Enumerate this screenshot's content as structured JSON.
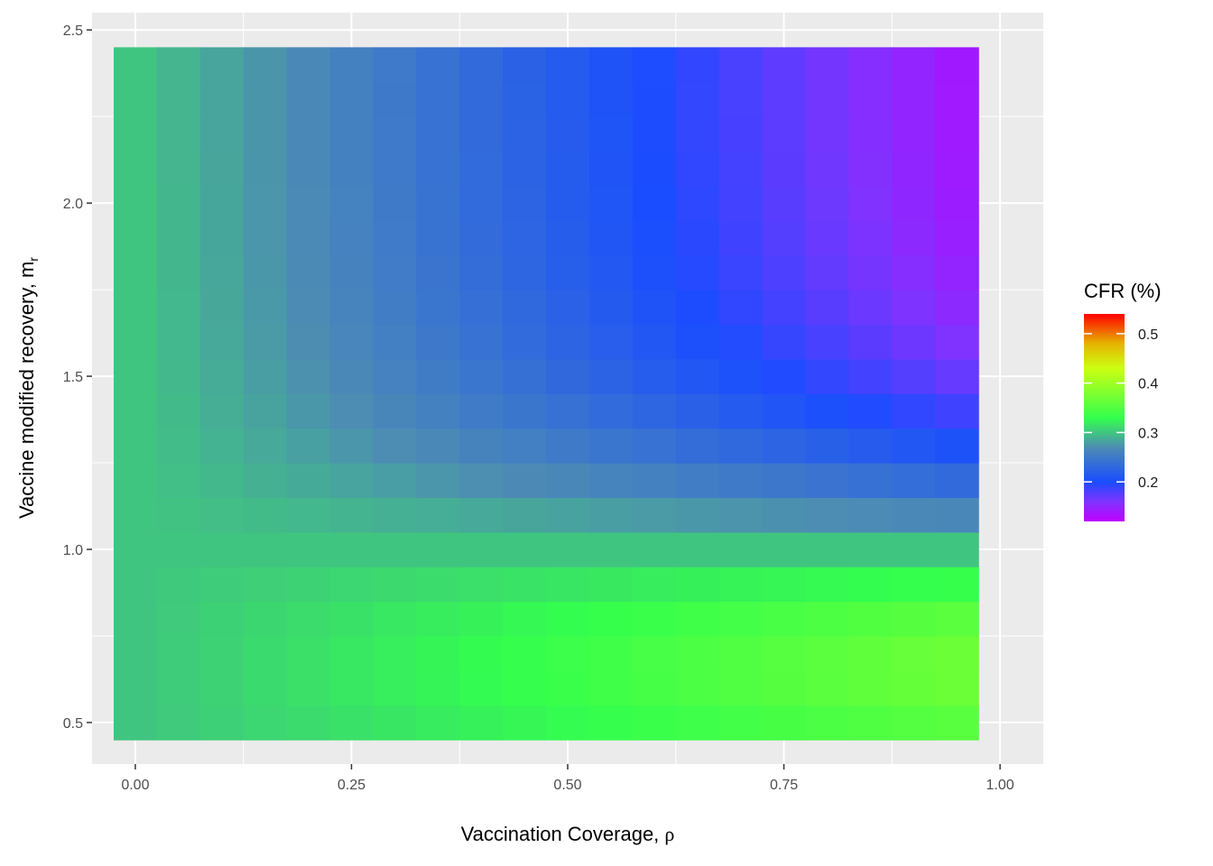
{
  "chart_data": {
    "type": "heatmap",
    "title": "",
    "xlabel_main": "Vaccination Coverage, ",
    "xlabel_symbol": "ρ",
    "ylabel_main": "Vaccine modified recovery, m",
    "ylabel_sub": "r",
    "x_ticks": [
      0.0,
      0.25,
      0.5,
      0.75,
      1.0
    ],
    "x_tick_labels": [
      "0.00",
      "0.25",
      "0.50",
      "0.75",
      "1.00"
    ],
    "y_ticks": [
      0.5,
      1.0,
      1.5,
      2.0,
      2.5
    ],
    "y_tick_labels": [
      "0.5",
      "1.0",
      "1.5",
      "2.0",
      "2.5"
    ],
    "xlim": [
      -0.05,
      1.05
    ],
    "ylim": [
      0.38,
      2.55
    ],
    "grid": true,
    "x": [
      0.0,
      0.05,
      0.1,
      0.15,
      0.2,
      0.25,
      0.3,
      0.35,
      0.4,
      0.45,
      0.5,
      0.55,
      0.6,
      0.65,
      0.7,
      0.75,
      0.8,
      0.85,
      0.9,
      0.95
    ],
    "y": [
      0.5,
      0.6,
      0.7,
      0.8,
      0.9,
      1.0,
      1.1,
      1.2,
      1.3,
      1.4,
      1.5,
      1.6,
      1.7,
      1.8,
      1.9,
      2.0,
      2.1,
      2.2,
      2.3,
      2.4
    ],
    "legend": {
      "title": "CFR (%)",
      "position": "right",
      "breaks": [
        0.5,
        0.4,
        0.3,
        0.2
      ],
      "labels": [
        "0.5",
        "0.4",
        "0.3",
        "0.2"
      ],
      "range": [
        0.12,
        0.54
      ],
      "palette": [
        "#bf00ff",
        "#7f33ff",
        "#1a4dff",
        "#4d8cb3",
        "#33ff4d",
        "#ccff11",
        "#e6b300",
        "#ff0000"
      ],
      "palette_stops": [
        0.12,
        0.16,
        0.2,
        0.27,
        0.33,
        0.43,
        0.48,
        0.54
      ]
    },
    "colors": {
      "panel_background": "#ebebeb",
      "grid_line": "#ffffff"
    }
  }
}
